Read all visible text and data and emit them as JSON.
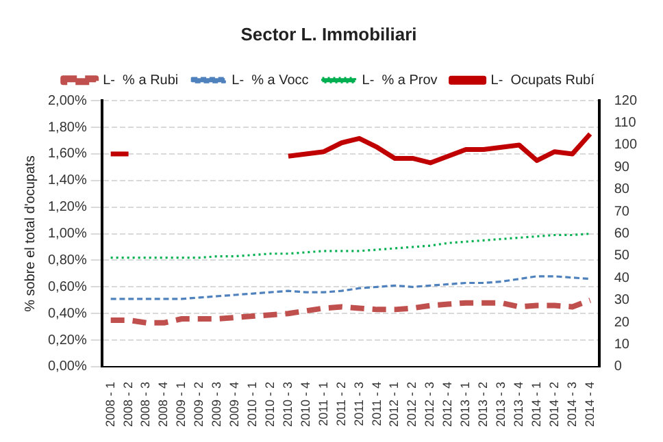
{
  "chart_data": {
    "type": "line",
    "title": "Sector L. Immobiliari",
    "ylabel": "% sobre el total d'ocupats",
    "categories": [
      "2008 - 1",
      "2008 - 2",
      "2008 - 3",
      "2008 - 4",
      "2009 - 1",
      "2009 - 2",
      "2009 - 3",
      "2009 - 4",
      "2010 - 1",
      "2010 - 2",
      "2010 - 3",
      "2010 - 4",
      "2011 - 1",
      "2011 - 2",
      "2011 - 3",
      "2011 - 4",
      "2012 - 1",
      "2012 - 2",
      "2012 - 3",
      "2012 - 4",
      "2013 - 1",
      "2013 - 2",
      "2013 - 3",
      "2013 - 4",
      "2014 - 1",
      "2014 - 2",
      "2014 - 3",
      "2014 - 4"
    ],
    "series": [
      {
        "name": "L-  % a Rubi",
        "color": "#c0504d",
        "line_style": "dashed",
        "values": [
          0.35,
          0.35,
          0.33,
          0.33,
          0.36,
          0.36,
          0.36,
          0.37,
          0.38,
          0.39,
          0.4,
          0.42,
          0.44,
          0.45,
          0.44,
          0.43,
          0.43,
          0.44,
          0.46,
          0.47,
          0.48,
          0.48,
          0.48,
          0.45,
          0.46,
          0.46,
          0.45,
          0.5
        ]
      },
      {
        "name": "L-  % a Vocc",
        "color": "#4f81bd",
        "line_style": "dashed",
        "values": [
          0.51,
          0.51,
          0.51,
          0.51,
          0.51,
          0.52,
          0.53,
          0.54,
          0.55,
          0.56,
          0.57,
          0.56,
          0.56,
          0.57,
          0.59,
          0.6,
          0.61,
          0.6,
          0.61,
          0.62,
          0.63,
          0.63,
          0.64,
          0.66,
          0.68,
          0.68,
          0.67,
          0.66
        ]
      },
      {
        "name": "L-  % a Prov",
        "color": "#00b050",
        "line_style": "dotted",
        "values": [
          0.82,
          0.82,
          0.82,
          0.82,
          0.82,
          0.82,
          0.83,
          0.83,
          0.84,
          0.85,
          0.85,
          0.86,
          0.87,
          0.87,
          0.87,
          0.88,
          0.89,
          0.9,
          0.91,
          0.93,
          0.94,
          0.95,
          0.96,
          0.97,
          0.98,
          0.99,
          0.99,
          1.0
        ]
      },
      {
        "name": "L-  Ocupats Rubí",
        "color": "#c00000",
        "line_style": "solid",
        "axis": "y2",
        "values": [
          96,
          96,
          null,
          null,
          null,
          null,
          null,
          null,
          null,
          null,
          95,
          96,
          97,
          101,
          103,
          99,
          94,
          94,
          92,
          95,
          98,
          98,
          99,
          100,
          93,
          97,
          96,
          105
        ]
      }
    ],
    "ylim": [
      0,
      2
    ],
    "yticks": [
      {
        "value": 0,
        "label": "0,00%"
      },
      {
        "value": 0.2,
        "label": "0,20%"
      },
      {
        "value": 0.4,
        "label": "0,40%"
      },
      {
        "value": 0.6,
        "label": "0,60%"
      },
      {
        "value": 0.8,
        "label": "0,80%"
      },
      {
        "value": 1,
        "label": "1,00%"
      },
      {
        "value": 1.2,
        "label": "1,20%"
      },
      {
        "value": 1.4,
        "label": "1,40%"
      },
      {
        "value": 1.6,
        "label": "1,60%"
      },
      {
        "value": 1.8,
        "label": "1,80%"
      },
      {
        "value": 2,
        "label": "2,00%"
      }
    ],
    "y2lim": [
      0,
      120
    ],
    "y2ticks": [
      0,
      10,
      20,
      30,
      40,
      50,
      60,
      70,
      80,
      90,
      100,
      110,
      120
    ],
    "grid": "y",
    "legend": "top",
    "marker": "none"
  }
}
